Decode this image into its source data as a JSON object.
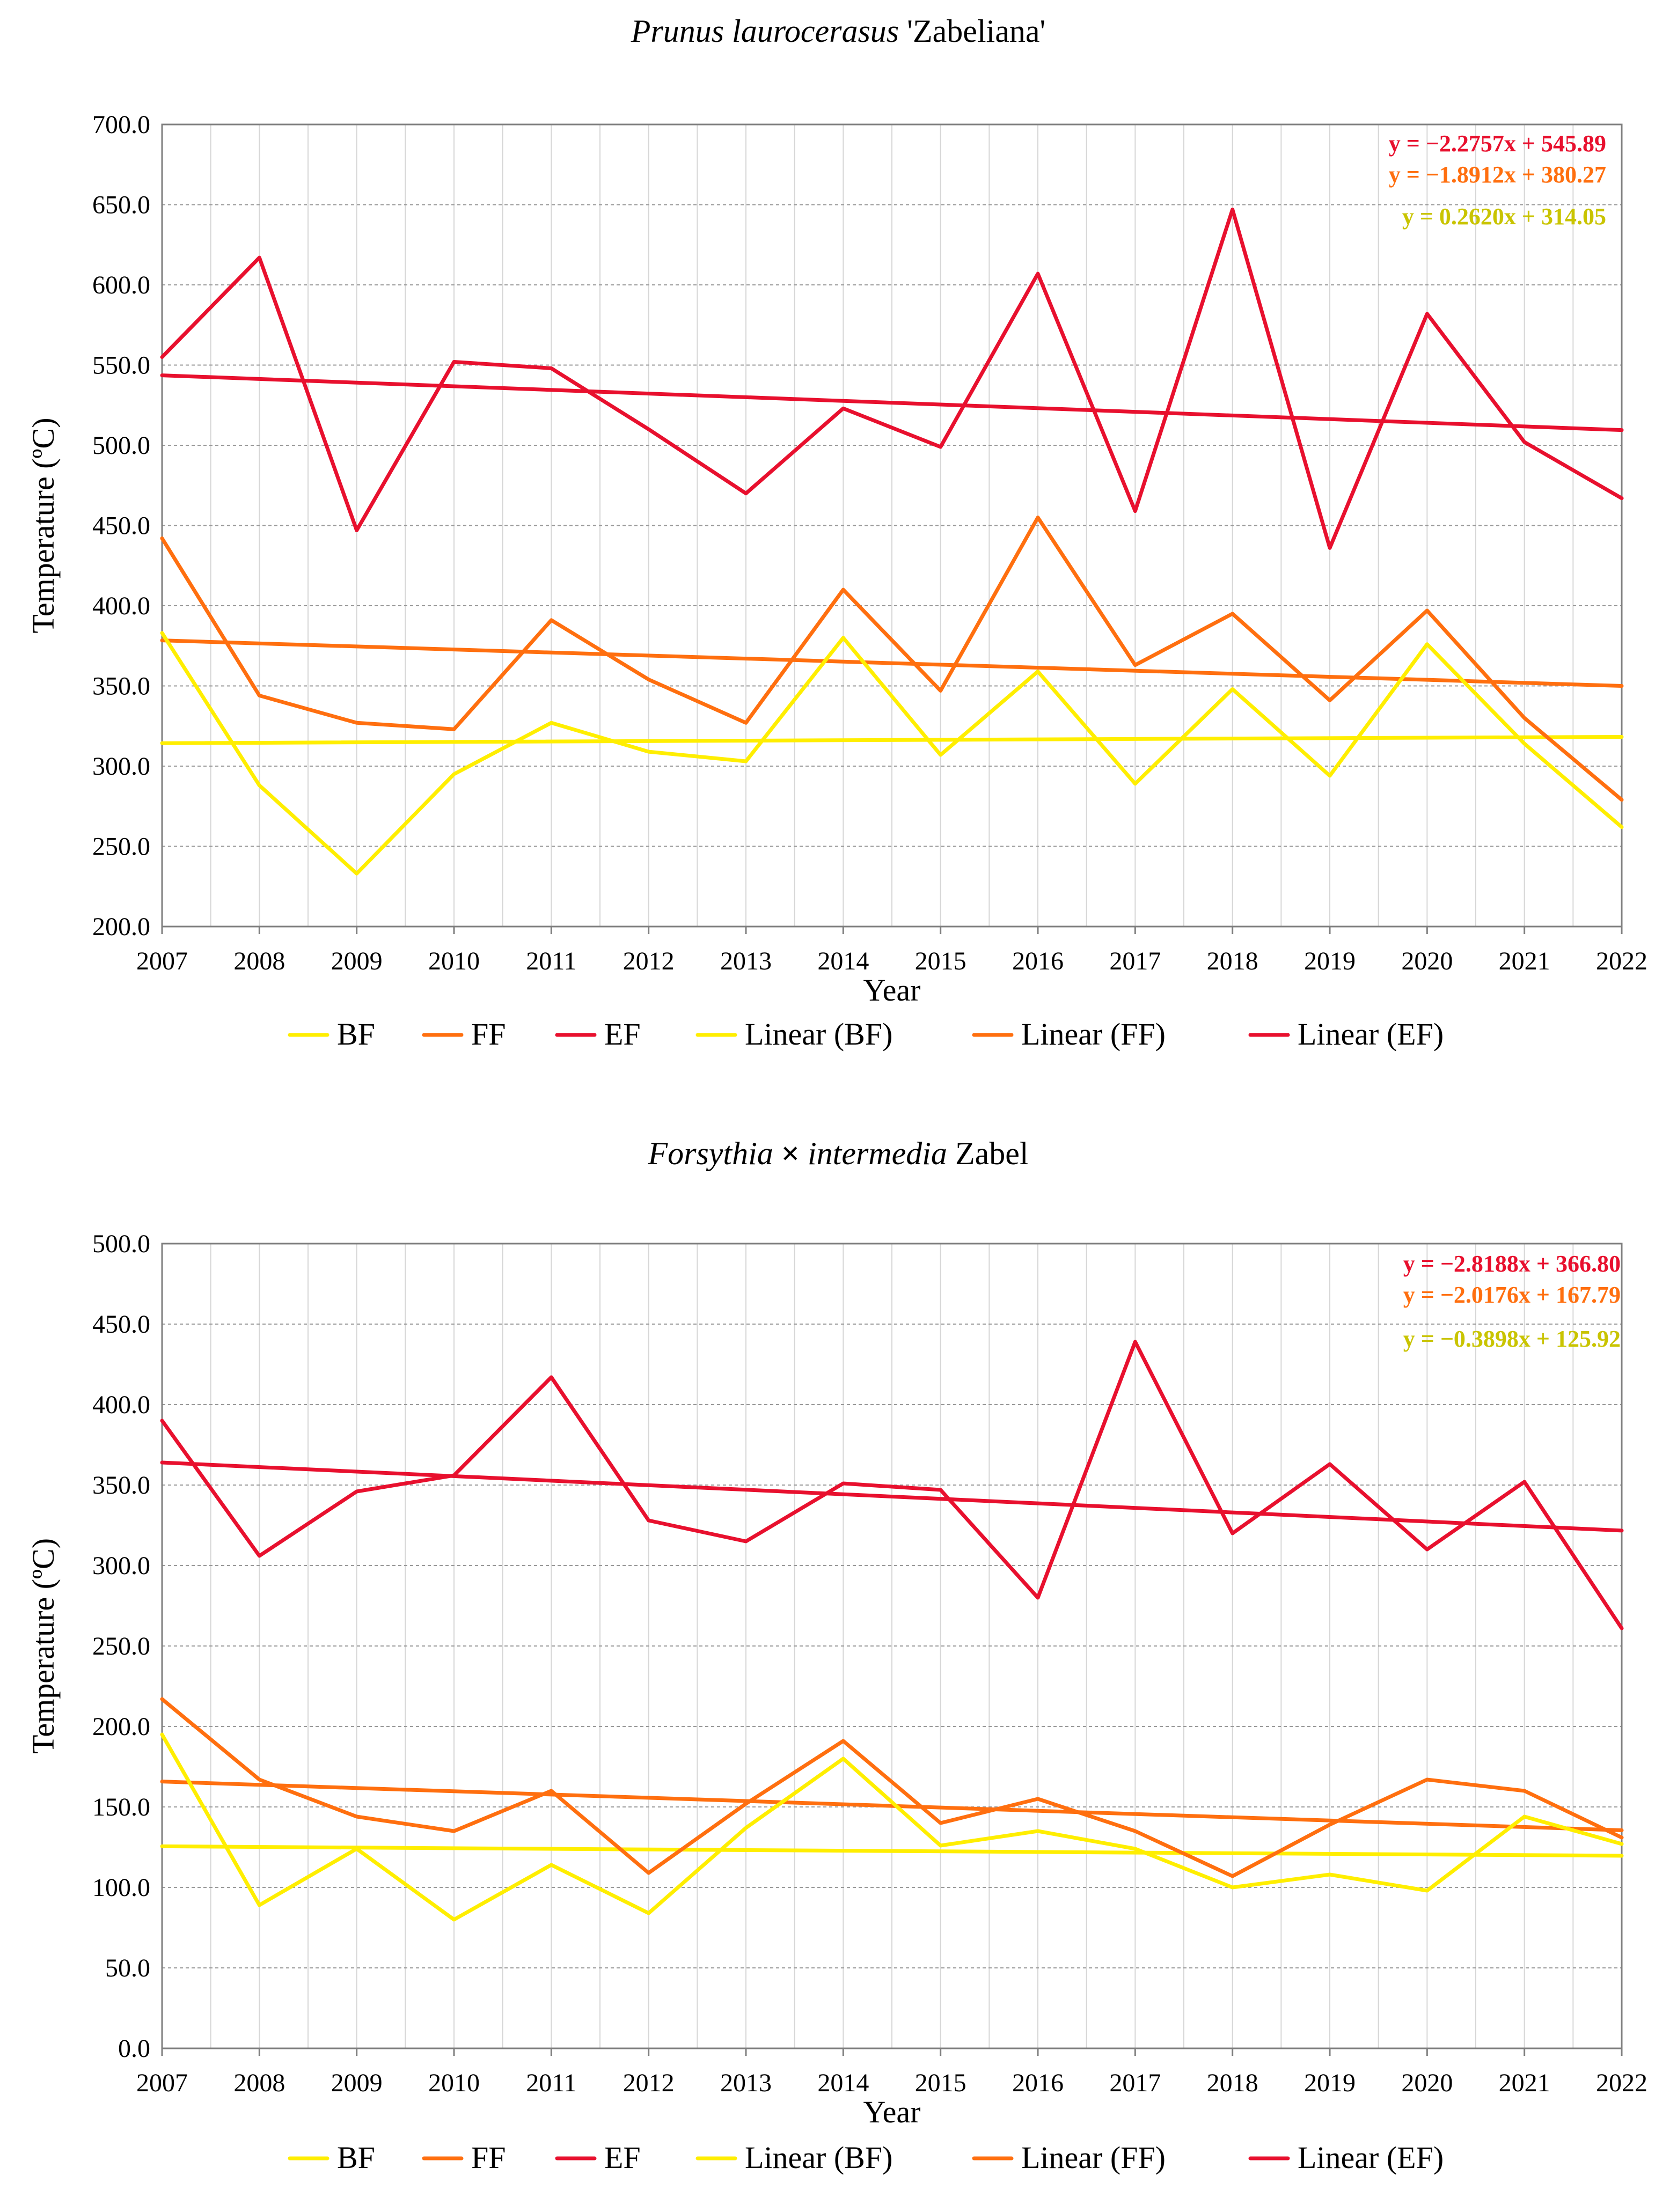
{
  "colors": {
    "BF": "#ffee00",
    "FF": "#ff6f0f",
    "EF": "#e8102e",
    "eq_BF": "#c9c400",
    "eq_FF": "#ff6f0f",
    "eq_EF": "#e8102e"
  },
  "chart_data": [
    {
      "type": "line",
      "title_italic": "Prunus laurocerasus",
      "title_rest": " 'Zabeliana'",
      "xlabel": "Year",
      "ylabel": "Temperature   (ºC)",
      "ylim": [
        200,
        700
      ],
      "yticks": [
        "200.0",
        "250.0",
        "300.0",
        "350.0",
        "400.0",
        "450.0",
        "500.0",
        "550.0",
        "600.0",
        "650.0",
        "700.0"
      ],
      "categories": [
        "2007",
        "2008",
        "2009",
        "2010",
        "2011",
        "2012",
        "2013",
        "2014",
        "2015",
        "2016",
        "2017",
        "2018",
        "2019",
        "2020",
        "2021",
        "2022"
      ],
      "series": [
        {
          "name": "BF",
          "values": [
            383,
            288,
            233,
            295,
            327,
            309,
            303,
            380,
            307,
            359,
            289,
            348,
            294,
            376,
            314,
            262
          ]
        },
        {
          "name": "FF",
          "values": [
            442,
            344,
            327,
            323,
            391,
            354,
            327,
            410,
            347,
            455,
            363,
            395,
            341,
            397,
            330,
            279
          ]
        },
        {
          "name": "EF",
          "values": [
            555,
            617,
            447,
            552,
            548,
            510,
            470,
            523,
            499,
            607,
            459,
            647,
            436,
            582,
            502,
            467
          ]
        }
      ],
      "trendlines": [
        {
          "name": "Linear (BF)",
          "series": "BF",
          "slope": 0.262,
          "intercept": 314.05,
          "equation": "y = 0.2620x + 314.05"
        },
        {
          "name": "Linear (FF)",
          "series": "FF",
          "slope": -1.8912,
          "intercept": 380.27,
          "equation": "y = −1.8912x + 380.27"
        },
        {
          "name": "Linear (EF)",
          "series": "EF",
          "slope": -2.2757,
          "intercept": 545.89,
          "equation": "y = −2.2757x + 545.89"
        }
      ],
      "legend": [
        "BF",
        "FF",
        "EF",
        "Linear (BF)",
        "Linear (FF)",
        "Linear (EF)"
      ]
    },
    {
      "type": "line",
      "title_italic": "Forsythia",
      "title_mark": " × ",
      "title_italic2": "intermedia",
      "title_rest": " Zabel",
      "xlabel": "Year",
      "ylabel": "Temperature   (ºC)",
      "ylim": [
        0,
        500
      ],
      "yticks": [
        "0.0",
        "50.0",
        "100.0",
        "150.0",
        "200.0",
        "250.0",
        "300.0",
        "350.0",
        "400.0",
        "450.0",
        "500.0"
      ],
      "categories": [
        "2007",
        "2008",
        "2009",
        "2010",
        "2011",
        "2012",
        "2013",
        "2014",
        "2015",
        "2016",
        "2017",
        "2018",
        "2019",
        "2020",
        "2021",
        "2022"
      ],
      "series": [
        {
          "name": "BF",
          "values": [
            195,
            89,
            124,
            80,
            114,
            84,
            137,
            180,
            126,
            135,
            124,
            100,
            108,
            98,
            144,
            127
          ]
        },
        {
          "name": "FF",
          "values": [
            217,
            167,
            144,
            135,
            160,
            109,
            152,
            191,
            140,
            155,
            135,
            107,
            139,
            167,
            160,
            131
          ]
        },
        {
          "name": "EF",
          "values": [
            390,
            306,
            346,
            356,
            417,
            328,
            315,
            351,
            347,
            280,
            439,
            320,
            363,
            310,
            352,
            261
          ]
        }
      ],
      "trendlines": [
        {
          "name": "Linear (BF)",
          "series": "BF",
          "slope": -0.3898,
          "intercept": 125.92,
          "equation": "y = −0.3898x + 125.92"
        },
        {
          "name": "Linear (FF)",
          "series": "FF",
          "slope": -2.0176,
          "intercept": 167.79,
          "equation": "y = −2.0176x + 167.79"
        },
        {
          "name": "Linear (EF)",
          "series": "EF",
          "slope": -2.8188,
          "intercept": 366.8,
          "equation": "y = −2.8188x + 366.80"
        }
      ],
      "legend": [
        "BF",
        "FF",
        "EF",
        "Linear (BF)",
        "Linear (FF)",
        "Linear (EF)"
      ]
    }
  ]
}
